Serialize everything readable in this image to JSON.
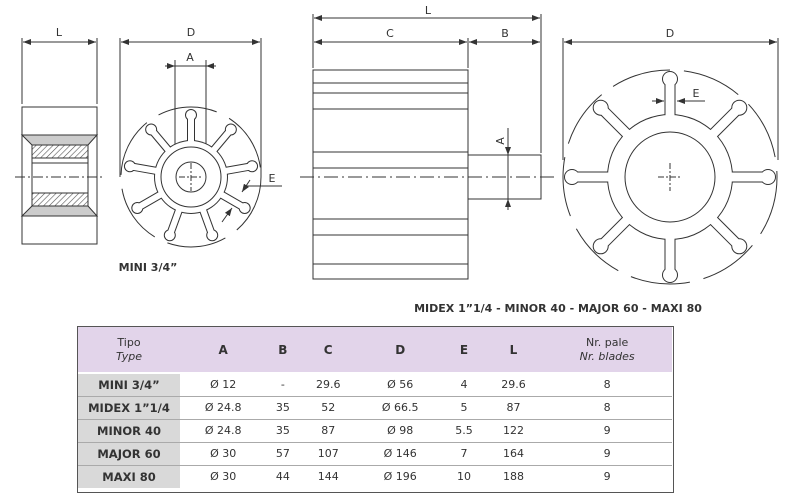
{
  "drawings": {
    "mini": {
      "caption": "MINI 3/4”",
      "dims": {
        "L": "L",
        "D": "D",
        "A": "A",
        "E": "E"
      }
    },
    "large": {
      "caption": "MIDEX 1”1/4 - MINOR 40 - MAJOR 60 - MAXI 80",
      "dims": {
        "L": "L",
        "C": "C",
        "B": "B",
        "A": "A",
        "D": "D",
        "E": "E"
      }
    }
  },
  "table": {
    "header": {
      "type_it": "Tipo",
      "type_en": "Type",
      "cols": [
        "A",
        "B",
        "C",
        "D",
        "E",
        "L"
      ],
      "blades_it": "Nr. pale",
      "blades_en": "Nr. blades"
    },
    "rows": [
      {
        "name": "MINI 3/4”",
        "cells": [
          "Ø 12",
          "-",
          "29.6",
          "Ø 56",
          "4",
          "29.6",
          "8"
        ]
      },
      {
        "name": "MIDEX 1”1/4",
        "cells": [
          "Ø 24.8",
          "35",
          "52",
          "Ø 66.5",
          "5",
          "87",
          "8"
        ]
      },
      {
        "name": "MINOR 40",
        "cells": [
          "Ø 24.8",
          "35",
          "87",
          "Ø 98",
          "5.5",
          "122",
          "9"
        ]
      },
      {
        "name": "MAJOR 60",
        "cells": [
          "Ø 30",
          "57",
          "107",
          "Ø 146",
          "7",
          "164",
          "9"
        ]
      },
      {
        "name": "MAXI 80",
        "cells": [
          "Ø 30",
          "44",
          "144",
          "Ø 196",
          "10",
          "188",
          "9"
        ]
      }
    ],
    "colors": {
      "header_bg": "#e2d4ea",
      "name_col_bg": "#d9d9d9"
    }
  }
}
